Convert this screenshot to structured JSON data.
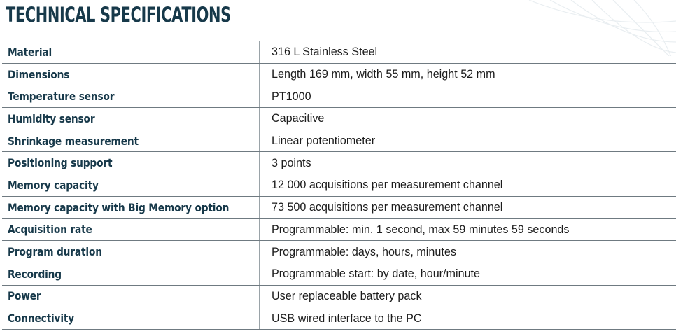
{
  "header": {
    "title": "TECHNICAL SPECIFICATIONS"
  },
  "theme": {
    "heading_color": "#17394a",
    "text_color": "#1c1c1c",
    "rule_color": "#6f7a81"
  },
  "specs": [
    {
      "label": "Material",
      "value": "316 L Stainless Steel"
    },
    {
      "label": "Dimensions",
      "value": "Length 169 mm, width 55 mm, height 52 mm"
    },
    {
      "label": "Temperature sensor",
      "value": "PT1000"
    },
    {
      "label": "Humidity sensor",
      "value": "Capacitive"
    },
    {
      "label": "Shrinkage measurement",
      "value": "Linear potentiometer"
    },
    {
      "label": "Positioning support",
      "value": "3 points"
    },
    {
      "label": "Memory capacity",
      "value": "12 000 acquisitions per measurement channel"
    },
    {
      "label": "Memory capacity with Big Memory option",
      "value": "73 500 acquisitions per measurement channel"
    },
    {
      "label": "Acquisition rate",
      "value": "Programmable: min. 1 second, max 59 minutes 59 seconds"
    },
    {
      "label": "Program duration",
      "value": "Programmable: days, hours, minutes"
    },
    {
      "label": "Recording",
      "value": "Programmable start: by date, hour/minute"
    },
    {
      "label": "Power",
      "value": "User replaceable battery pack"
    },
    {
      "label": "Connectivity",
      "value": "USB wired interface to the PC"
    }
  ]
}
